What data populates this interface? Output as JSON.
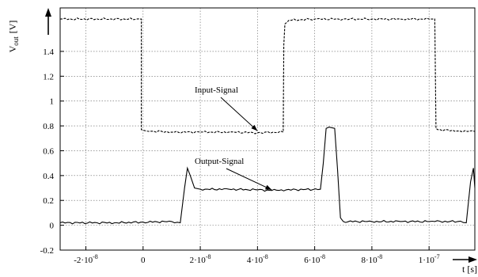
{
  "chart_data": {
    "type": "line",
    "title": "",
    "xlabel": "t [s]",
    "ylabel_main": "V",
    "ylabel_sub": "out",
    "ylabel_unit": "[V]",
    "xlim": [
      -2.9e-08,
      1.16e-07
    ],
    "ylim": [
      -0.2,
      1.75
    ],
    "grid": true,
    "x_ticks": [
      {
        "value": -2e-08,
        "mant": "-2·10",
        "exp": "-8"
      },
      {
        "value": 0,
        "mant": "0",
        "exp": ""
      },
      {
        "value": 2e-08,
        "mant": "2·10",
        "exp": "-8"
      },
      {
        "value": 4e-08,
        "mant": "4·10",
        "exp": "-8"
      },
      {
        "value": 6e-08,
        "mant": "6·10",
        "exp": "-8"
      },
      {
        "value": 8e-08,
        "mant": "8·10",
        "exp": "-8"
      },
      {
        "value": 1e-07,
        "mant": "1·10",
        "exp": "-7"
      }
    ],
    "y_ticks": [
      {
        "value": -0.2,
        "label": "-0.2"
      },
      {
        "value": 0,
        "label": "0"
      },
      {
        "value": 0.2,
        "label": "0.2"
      },
      {
        "value": 0.4,
        "label": "0.4"
      },
      {
        "value": 0.6,
        "label": "0.6"
      },
      {
        "value": 0.8,
        "label": "0.8"
      },
      {
        "value": 1.0,
        "label": "1"
      },
      {
        "value": 1.2,
        "label": "1.2"
      },
      {
        "value": 1.4,
        "label": "1.4"
      }
    ],
    "series": [
      {
        "name": "Input-Signal",
        "style": "dashed",
        "x": [
          -2.9e-08,
          -1e-09,
          -6e-10,
          -6e-10,
          1e-09,
          1e-08,
          2e-08,
          3e-08,
          4e-08,
          4.9e-08,
          4.92e-08,
          4.96e-08,
          5.1e-08,
          6e-08,
          7e-08,
          8e-08,
          9e-08,
          1e-07,
          1.015e-07,
          1.02e-07,
          1.024e-07,
          1.03e-07,
          1.1e-07,
          1.16e-07
        ],
        "y": [
          1.66,
          1.66,
          1.66,
          0.77,
          0.76,
          0.75,
          0.75,
          0.75,
          0.745,
          0.75,
          1.45,
          1.62,
          1.65,
          1.66,
          1.66,
          1.66,
          1.66,
          1.66,
          1.66,
          1.66,
          0.78,
          0.77,
          0.76,
          0.755
        ]
      },
      {
        "name": "Output-Signal",
        "style": "solid",
        "x": [
          -2.9e-08,
          -1e-08,
          0,
          1e-08,
          1.3e-08,
          1.45e-08,
          1.55e-08,
          1.65e-08,
          1.8e-08,
          2e-08,
          3e-08,
          4e-08,
          4.5e-08,
          5e-08,
          6.2e-08,
          6.3e-08,
          6.4e-08,
          6.5e-08,
          6.7e-08,
          6.8e-08,
          6.9e-08,
          7e-08,
          8e-08,
          9e-08,
          1.02e-07,
          1.1e-07,
          1.13e-07,
          1.145e-07,
          1.155e-07,
          1.16e-07
        ],
        "y": [
          0.02,
          0.02,
          0.025,
          0.03,
          0.02,
          0.3,
          0.46,
          0.4,
          0.3,
          0.29,
          0.29,
          0.285,
          0.28,
          0.285,
          0.29,
          0.5,
          0.78,
          0.79,
          0.78,
          0.45,
          0.06,
          0.03,
          0.03,
          0.03,
          0.03,
          0.03,
          0.02,
          0.35,
          0.46,
          0.3
        ]
      }
    ],
    "annotations": [
      {
        "text": "Input-Signal",
        "points_to_x": 4e-08,
        "points_to_y": 0.76
      },
      {
        "text": "Output-Signal",
        "points_to_x": 4.5e-08,
        "points_to_y": 0.285
      }
    ]
  }
}
